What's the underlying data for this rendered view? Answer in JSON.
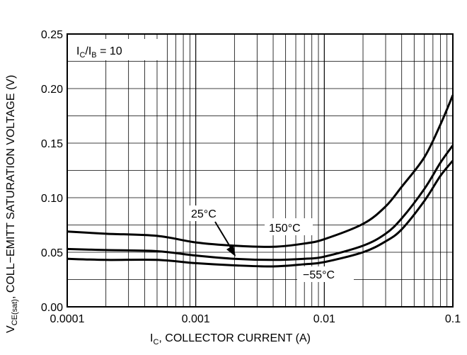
{
  "chart_data": {
    "type": "line",
    "xlabel": "I_C, COLLECTOR CURRENT (A)",
    "ylabel": "V_CE(sat), COLL−EMITT SATURATION VOLTAGE (V)",
    "x_scale": "log",
    "xlim": [
      0.0001,
      0.1
    ],
    "ylim": [
      0.0,
      0.25
    ],
    "grid": true,
    "x_ticks": [
      "0.0001",
      "0.001",
      "0.01",
      "0.1"
    ],
    "y_ticks": [
      "0.00",
      "0.05",
      "0.10",
      "0.15",
      "0.20",
      "0.25"
    ],
    "condition_label": "I_C/I_B = 10",
    "series": [
      {
        "name": "150°C",
        "x": [
          0.0001,
          0.0002,
          0.0005,
          0.001,
          0.002,
          0.004,
          0.007,
          0.01,
          0.02,
          0.03,
          0.04,
          0.06,
          0.08,
          0.1
        ],
        "y": [
          0.069,
          0.067,
          0.065,
          0.059,
          0.056,
          0.055,
          0.058,
          0.062,
          0.076,
          0.092,
          0.11,
          0.137,
          0.167,
          0.194
        ]
      },
      {
        "name": "25°C",
        "x": [
          0.0001,
          0.0002,
          0.0005,
          0.001,
          0.002,
          0.004,
          0.007,
          0.01,
          0.02,
          0.03,
          0.04,
          0.06,
          0.08,
          0.1
        ],
        "y": [
          0.053,
          0.052,
          0.051,
          0.047,
          0.044,
          0.043,
          0.044,
          0.046,
          0.056,
          0.067,
          0.081,
          0.108,
          0.132,
          0.148
        ]
      },
      {
        "name": "−55°C",
        "x": [
          0.0001,
          0.0002,
          0.0005,
          0.001,
          0.002,
          0.004,
          0.007,
          0.01,
          0.02,
          0.03,
          0.04,
          0.06,
          0.08,
          0.1
        ],
        "y": [
          0.044,
          0.043,
          0.043,
          0.04,
          0.038,
          0.037,
          0.039,
          0.041,
          0.05,
          0.06,
          0.071,
          0.097,
          0.12,
          0.134
        ]
      }
    ]
  }
}
